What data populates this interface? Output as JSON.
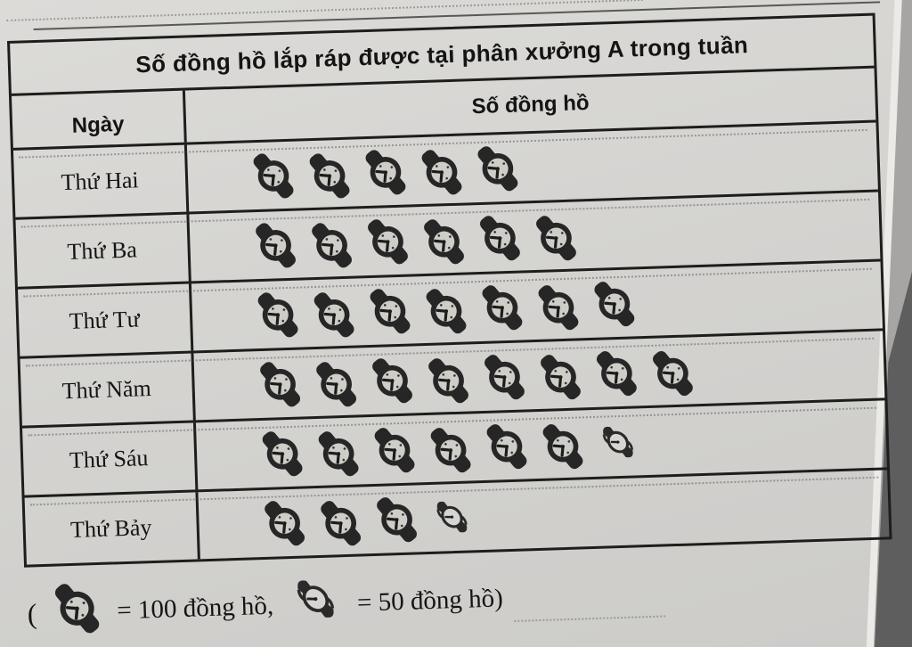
{
  "table": {
    "title": "Số đồng hồ lắp ráp được tại phân xưởng A trong tuần",
    "columns": {
      "day": "Ngày",
      "count": "Số đồng hồ"
    },
    "rows": [
      {
        "day": "Thứ Hai",
        "full_icons": 5,
        "half_icons": 0
      },
      {
        "day": "Thứ Ba",
        "full_icons": 6,
        "half_icons": 0
      },
      {
        "day": "Thứ Tư",
        "full_icons": 7,
        "half_icons": 0
      },
      {
        "day": "Thứ Năm",
        "full_icons": 8,
        "half_icons": 0
      },
      {
        "day": "Thứ Sáu",
        "full_icons": 6,
        "half_icons": 1
      },
      {
        "day": "Thứ Bảy",
        "full_icons": 3,
        "half_icons": 1
      }
    ]
  },
  "legend": {
    "open_paren": "(",
    "full_icon_label": "= 100 đồng hồ,",
    "half_icon_label": "= 50 đồng hồ)"
  },
  "icons": {
    "full": "watch-icon",
    "half": "half-watch-icon",
    "full_unit": 100,
    "half_unit": 50
  },
  "colors": {
    "paper": "#d6d5d2",
    "ink": "#1d1d1d",
    "desk_light": "#a6a5a3",
    "desk_dark": "#5e5e5e"
  },
  "chart_data": {
    "type": "bar",
    "subtype": "pictograph",
    "title": "Số đồng hồ lắp ráp được tại phân xưởng A trong tuần",
    "categories": [
      "Thứ Hai",
      "Thứ Ba",
      "Thứ Tư",
      "Thứ Năm",
      "Thứ Sáu",
      "Thứ Bảy"
    ],
    "values": [
      500,
      600,
      700,
      800,
      650,
      350
    ],
    "icon_counts": [
      {
        "full": 5,
        "half": 0
      },
      {
        "full": 6,
        "half": 0
      },
      {
        "full": 7,
        "half": 0
      },
      {
        "full": 8,
        "half": 0
      },
      {
        "full": 6,
        "half": 1
      },
      {
        "full": 3,
        "half": 1
      }
    ],
    "icon_unit_full": 100,
    "icon_unit_half": 50,
    "xlabel": "Ngày",
    "ylabel": "Số đồng hồ",
    "legend_entries": [
      "watch icon = 100 đồng hồ",
      "half-watch icon = 50 đồng hồ"
    ]
  }
}
